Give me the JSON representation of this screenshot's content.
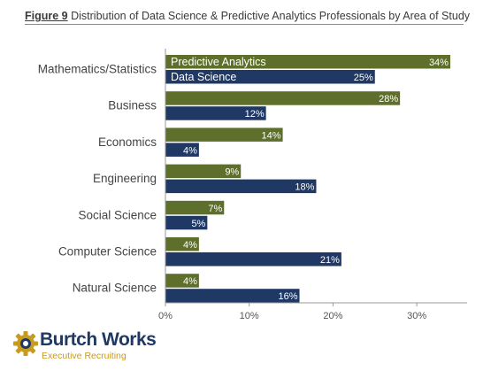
{
  "header": {
    "figure_label": "Figure 9",
    "title": "Distribution of Data Science & Predictive Analytics Professionals by Area of Study"
  },
  "colors": {
    "predictive_analytics": "#5e6f2c",
    "data_science": "#1f3864",
    "axis": "#999999",
    "logo_navy": "#1f3864",
    "logo_gold": "#c89a1e"
  },
  "chart_data": {
    "type": "bar",
    "orientation": "horizontal",
    "categories": [
      "Mathematics/Statistics",
      "Business",
      "Economics",
      "Engineering",
      "Social Science",
      "Computer Science",
      "Natural Science"
    ],
    "series": [
      {
        "name": "Predictive Analytics",
        "values": [
          34,
          28,
          14,
          9,
          7,
          4,
          4
        ],
        "labels": [
          "34%",
          "28%",
          "14%",
          "9%",
          "7%",
          "4%",
          "4%"
        ]
      },
      {
        "name": "Data Science",
        "values": [
          25,
          12,
          4,
          18,
          5,
          21,
          16
        ],
        "labels": [
          "25%",
          "12%",
          "4%",
          "18%",
          "5%",
          "21%",
          "16%"
        ]
      }
    ],
    "x_ticks": [
      0,
      10,
      20,
      30
    ],
    "x_tick_labels": [
      "0%",
      "10%",
      "20%",
      "30%"
    ],
    "xlim": [
      0,
      36
    ],
    "grid": false,
    "legend_position": "inside-top"
  },
  "logo": {
    "name": "Burtch Works",
    "tagline": "Executive Recruiting",
    "icon": "gear-icon"
  }
}
